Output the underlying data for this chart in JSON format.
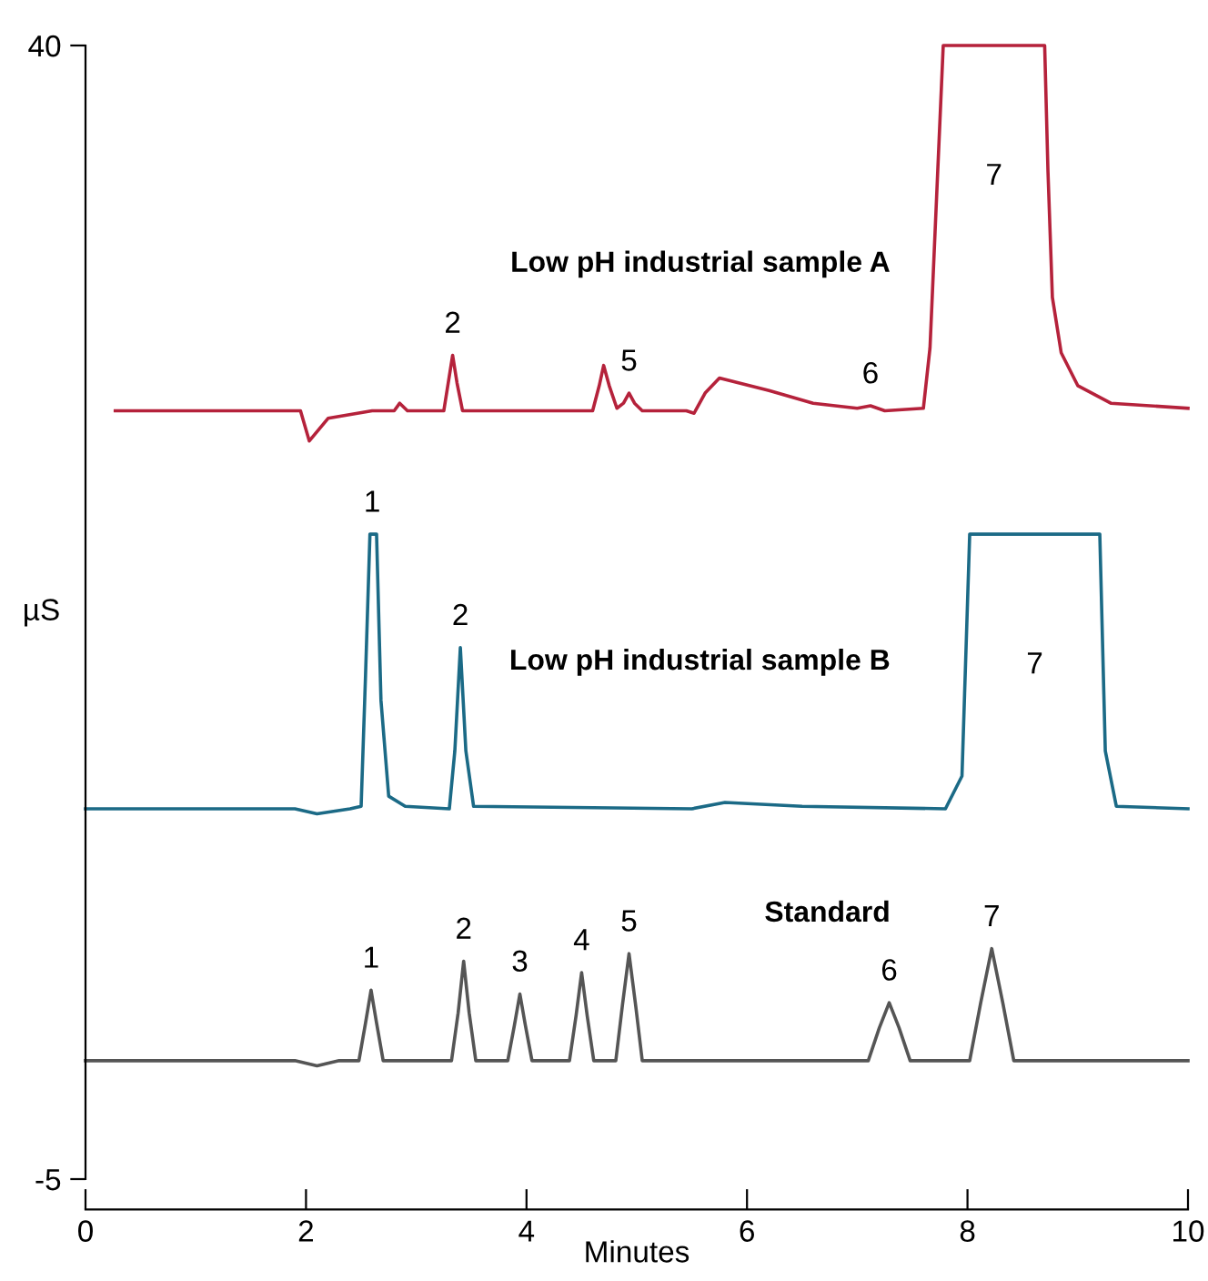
{
  "chart_data": {
    "type": "line",
    "xlabel": "Minutes",
    "ylabel": "µS",
    "xlim": [
      0,
      10
    ],
    "xticks": [
      0,
      2,
      4,
      6,
      8,
      10
    ],
    "ylim": [
      -5,
      40
    ],
    "yticks": [
      -5,
      40
    ],
    "grid": false,
    "legend": false,
    "marker": "none",
    "line_style": "solid",
    "series": [
      {
        "name": "Low pH industrial sample A",
        "color": "#b5223b",
        "x": [
          0.27,
          1.95,
          2.03,
          2.2,
          2.6,
          2.8,
          2.85,
          2.92,
          3.25,
          3.29,
          3.33,
          3.37,
          3.42,
          4.6,
          4.66,
          4.7,
          4.75,
          4.82,
          4.88,
          4.93,
          4.98,
          5.05,
          5.45,
          5.52,
          5.62,
          5.75,
          6.2,
          6.6,
          7.0,
          7.12,
          7.25,
          7.6,
          7.66,
          7.72,
          7.78,
          8.7,
          8.73,
          8.77,
          8.85,
          9.0,
          9.3,
          10
        ],
        "values": [
          25.5,
          25.5,
          24.3,
          25.2,
          25.5,
          25.5,
          25.8,
          25.5,
          25.5,
          26.6,
          27.7,
          26.6,
          25.5,
          25.5,
          26.5,
          27.3,
          26.5,
          25.6,
          25.8,
          26.2,
          25.8,
          25.5,
          25.5,
          25.4,
          26.2,
          26.8,
          26.3,
          25.8,
          25.6,
          25.7,
          25.5,
          25.6,
          28,
          34,
          40,
          40,
          35,
          30,
          27.8,
          26.5,
          25.8,
          25.6
        ]
      },
      {
        "name": "Low pH industrial sample B",
        "color": "#1b6a86",
        "x": [
          0,
          1.9,
          2.1,
          2.4,
          2.5,
          2.54,
          2.58,
          2.64,
          2.68,
          2.75,
          2.9,
          3.3,
          3.35,
          3.4,
          3.45,
          3.52,
          5.5,
          5.8,
          6.5,
          7.8,
          7.95,
          8.02,
          9.2,
          9.25,
          9.35,
          10
        ],
        "values": [
          9.7,
          9.7,
          9.5,
          9.7,
          9.8,
          15,
          20.6,
          20.6,
          14,
          10.2,
          9.8,
          9.7,
          12,
          16.1,
          12,
          9.8,
          9.7,
          9.95,
          9.8,
          9.7,
          11,
          20.6,
          20.6,
          12,
          9.8,
          9.7
        ]
      },
      {
        "name": "Standard",
        "color": "#555555",
        "x": [
          0,
          1.9,
          2.1,
          2.3,
          2.48,
          2.54,
          2.59,
          2.64,
          2.7,
          3.32,
          3.38,
          3.43,
          3.48,
          3.54,
          3.83,
          3.89,
          3.94,
          3.99,
          4.05,
          4.39,
          4.45,
          4.5,
          4.55,
          4.61,
          4.81,
          4.87,
          4.93,
          4.99,
          5.05,
          7.1,
          7.2,
          7.29,
          7.38,
          7.48,
          8.02,
          8.12,
          8.22,
          8.32,
          8.42,
          10
        ],
        "values": [
          -0.3,
          -0.3,
          -0.5,
          -0.3,
          -0.3,
          1.2,
          2.5,
          1.2,
          -0.3,
          -0.3,
          1.6,
          3.65,
          1.6,
          -0.3,
          -0.3,
          1.1,
          2.35,
          1.1,
          -0.3,
          -0.3,
          1.5,
          3.2,
          1.5,
          -0.3,
          -0.3,
          1.9,
          3.95,
          1.9,
          -0.3,
          -0.3,
          1.0,
          2.0,
          1.0,
          -0.3,
          -0.3,
          2.0,
          4.15,
          2.0,
          -0.3,
          -0.3
        ]
      }
    ],
    "annotations": [
      {
        "text": "2",
        "x": 3.33,
        "y": 27.7
      },
      {
        "text": "5",
        "x": 4.93,
        "y": 26.2
      },
      {
        "text": "6",
        "x": 7.12,
        "y": 25.7
      },
      "7",
      {
        "text": "1",
        "x": 2.6,
        "y": 20.6
      },
      {
        "text": "2",
        "x": 3.4,
        "y": 16.1
      },
      "7",
      {
        "text": "1",
        "x": 2.59,
        "y": 2.5
      },
      {
        "text": "2",
        "x": 3.43,
        "y": 3.65
      },
      {
        "text": "3",
        "x": 3.94,
        "y": 2.35
      },
      {
        "text": "4",
        "x": 4.5,
        "y": 3.2
      },
      {
        "text": "5",
        "x": 4.93,
        "y": 3.95
      },
      {
        "text": "6",
        "x": 7.29,
        "y": 2.0
      },
      {
        "text": "7",
        "x": 8.22,
        "y": 4.15
      }
    ]
  }
}
